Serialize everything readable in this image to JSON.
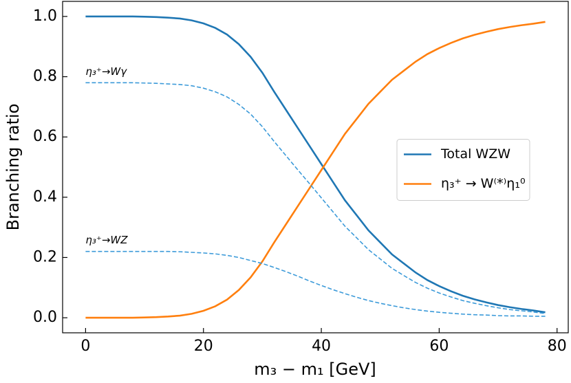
{
  "chart_data": {
    "type": "line",
    "xlabel": "m₃ − m₁ [GeV]",
    "ylabel": "Branching ratio",
    "x": [
      0,
      2,
      4,
      6,
      8,
      10,
      12,
      14,
      16,
      18,
      20,
      22,
      24,
      26,
      28,
      30,
      32,
      34,
      36,
      38,
      40,
      42,
      44,
      46,
      48,
      50,
      52,
      54,
      56,
      58,
      60,
      62,
      64,
      66,
      68,
      70,
      72,
      74,
      76,
      78
    ],
    "series": [
      {
        "name": "Total WZW",
        "color": "#1f77b4",
        "dashed": false,
        "values": [
          1.0,
          1.0,
          1.0,
          1.0,
          1.0,
          0.999,
          0.998,
          0.996,
          0.993,
          0.987,
          0.977,
          0.962,
          0.94,
          0.908,
          0.866,
          0.813,
          0.75,
          0.69,
          0.63,
          0.57,
          0.51,
          0.45,
          0.39,
          0.34,
          0.29,
          0.25,
          0.21,
          0.18,
          0.15,
          0.125,
          0.105,
          0.088,
          0.073,
          0.061,
          0.051,
          0.042,
          0.035,
          0.029,
          0.024,
          0.018
        ]
      },
      {
        "name": "η₃⁺ → W⁽*⁾η₁⁰",
        "color": "#ff7f0e",
        "dashed": false,
        "values": [
          0.0,
          0.0,
          0.0,
          0.0,
          0.0,
          0.001,
          0.002,
          0.004,
          0.007,
          0.013,
          0.023,
          0.038,
          0.06,
          0.092,
          0.134,
          0.187,
          0.25,
          0.31,
          0.37,
          0.43,
          0.49,
          0.55,
          0.61,
          0.66,
          0.71,
          0.75,
          0.79,
          0.82,
          0.85,
          0.875,
          0.895,
          0.912,
          0.927,
          0.939,
          0.949,
          0.958,
          0.965,
          0.971,
          0.976,
          0.982
        ]
      },
      {
        "label": "η₃⁺→Wγ",
        "color": "#3b9ad9",
        "dashed": true,
        "values": [
          0.78,
          0.78,
          0.78,
          0.78,
          0.78,
          0.779,
          0.778,
          0.776,
          0.774,
          0.77,
          0.762,
          0.75,
          0.733,
          0.708,
          0.676,
          0.634,
          0.585,
          0.538,
          0.491,
          0.445,
          0.398,
          0.351,
          0.304,
          0.265,
          0.226,
          0.195,
          0.164,
          0.14,
          0.117,
          0.098,
          0.082,
          0.069,
          0.057,
          0.048,
          0.04,
          0.033,
          0.027,
          0.023,
          0.019,
          0.014
        ]
      },
      {
        "label": "η₃⁺→WZ",
        "color": "#3b9ad9",
        "dashed": true,
        "values": [
          0.22,
          0.22,
          0.22,
          0.22,
          0.22,
          0.22,
          0.22,
          0.22,
          0.219,
          0.217,
          0.215,
          0.212,
          0.207,
          0.2,
          0.19,
          0.18,
          0.167,
          0.153,
          0.138,
          0.122,
          0.107,
          0.093,
          0.08,
          0.068,
          0.057,
          0.048,
          0.04,
          0.033,
          0.027,
          0.022,
          0.018,
          0.015,
          0.012,
          0.01,
          0.009,
          0.007,
          0.006,
          0.006,
          0.005,
          0.005
        ]
      }
    ],
    "xlim": [
      -3.9,
      81.9
    ],
    "xticks": [
      0,
      20,
      40,
      60,
      80
    ],
    "ylim": [
      -0.05,
      1.05
    ],
    "yticks": [
      {
        "value": 0,
        "label": "0.0"
      },
      {
        "value": 0.2,
        "label": "0.2"
      },
      {
        "value": 0.4,
        "label": "0.4"
      },
      {
        "value": 0.6,
        "label": "0.6"
      },
      {
        "value": 0.8,
        "label": "0.8"
      },
      {
        "value": 1,
        "label": "1.0"
      }
    ],
    "legend": "center right",
    "grid": false
  }
}
